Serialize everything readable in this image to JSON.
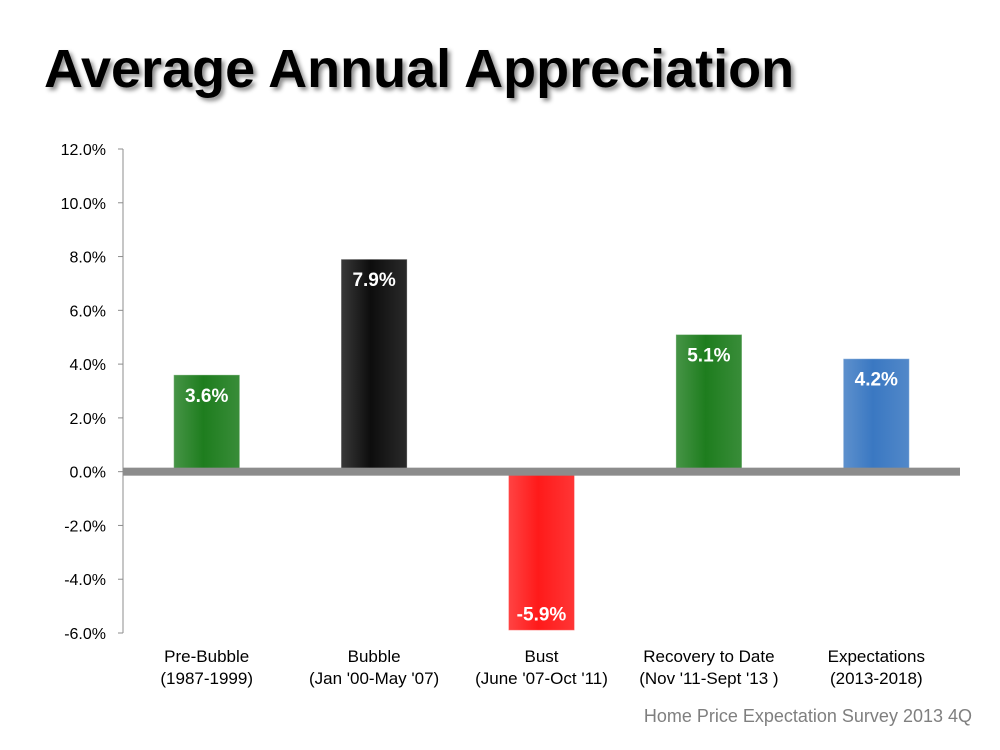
{
  "slide": {
    "title": "Average Annual Appreciation",
    "source": "Home Price Expectation Survey 2013 4Q"
  },
  "chart_data": {
    "type": "bar",
    "title": "",
    "xlabel": "",
    "ylabel": "",
    "categories": [
      [
        "Pre-Bubble",
        "(1987-1999)"
      ],
      [
        "Bubble",
        "(Jan '00-May '07)"
      ],
      [
        "Bust",
        "(June '07-Oct '11)"
      ],
      [
        "Recovery to Date",
        "(Nov '11-Sept '13 )"
      ],
      [
        "Expectations",
        "(2013-2018)"
      ]
    ],
    "values": [
      3.6,
      7.9,
      -5.9,
      5.1,
      4.2
    ],
    "data_labels": [
      "3.6%",
      "7.9%",
      "-5.9%",
      "5.1%",
      "4.2%"
    ],
    "bar_colors": [
      "#1e7d1e",
      "#0d0d0d",
      "#ff1a1a",
      "#1e7d1e",
      "#3a78c2"
    ],
    "ylim": [
      -6,
      12
    ],
    "yticks": [
      12,
      10,
      8,
      6,
      4,
      2,
      0,
      -2,
      -4,
      -6
    ],
    "ytick_labels": [
      "12.0%",
      "10.0%",
      "8.0%",
      "6.0%",
      "4.0%",
      "2.0%",
      "0.0%",
      "-2.0%",
      "-4.0%",
      "-6.0%"
    ],
    "grid": false,
    "legend": "none"
  }
}
